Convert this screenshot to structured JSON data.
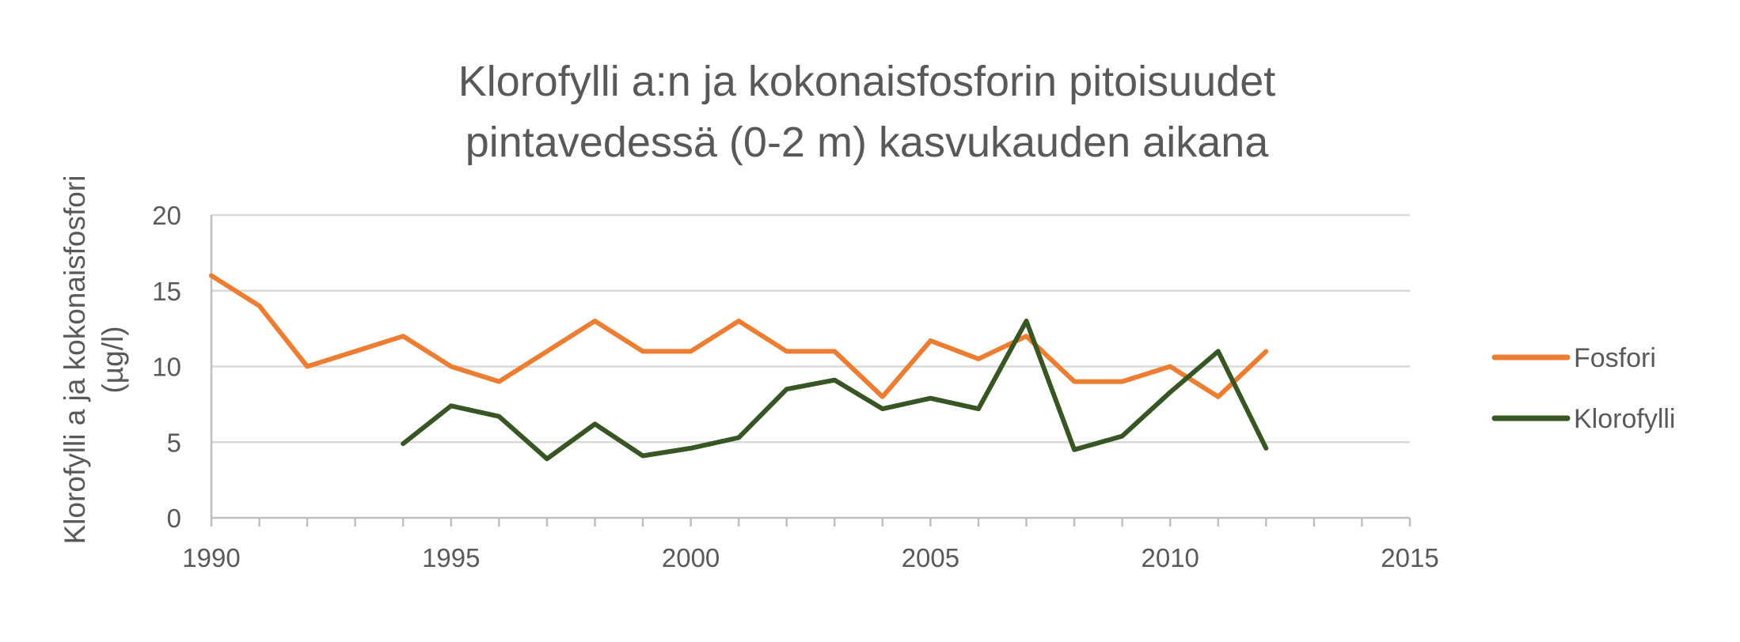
{
  "chart_data": {
    "type": "line",
    "title": "Klorofylli a:n ja kokonaisfosforin pitoisuudet pintavedessä (0-2 m) kasvukauden aikana",
    "title_lines": [
      "Klorofylli a:n ja kokonaisfosforin pitoisuudet",
      "pintavedessä (0-2 m) kasvukauden aikana"
    ],
    "xlabel": "",
    "ylabel": "Klorofylli a ja kokonaisfosfori (µg/l)",
    "ylabel_lines": [
      "Klorofylli a ja kokonaisfosfori",
      "(µg/l)"
    ],
    "xlim": [
      1990,
      2015
    ],
    "ylim": [
      0,
      20
    ],
    "x_major_ticks": [
      1990,
      1995,
      2000,
      2005,
      2010,
      2015
    ],
    "x_major_tick_labels": [
      "1990",
      "1995",
      "2000",
      "2005",
      "2010",
      "2015"
    ],
    "x_minor_step": 1,
    "y_ticks": [
      0,
      5,
      10,
      15,
      20
    ],
    "y_tick_labels": [
      "0",
      "5",
      "10",
      "15",
      "20"
    ],
    "grid": true,
    "legend_position": "right",
    "series": [
      {
        "name": "Fosfori",
        "color": "#ed7d31",
        "x": [
          1990,
          1991,
          1992,
          1993,
          1994,
          1995,
          1996,
          1997,
          1998,
          1999,
          2000,
          2001,
          2002,
          2003,
          2004,
          2005,
          2006,
          2007,
          2008,
          2009,
          2010,
          2011,
          2012
        ],
        "y": [
          16,
          14,
          10,
          11,
          12,
          10,
          9,
          11,
          13,
          11,
          11,
          13,
          11,
          11,
          8,
          11.7,
          10.5,
          12,
          9,
          9,
          10,
          8,
          11
        ]
      },
      {
        "name": "Klorofylli",
        "color": "#375623",
        "x": [
          1994,
          1995,
          1996,
          1997,
          1998,
          1999,
          2000,
          2001,
          2002,
          2003,
          2004,
          2005,
          2006,
          2007,
          2008,
          2009,
          2010,
          2011,
          2012
        ],
        "y": [
          4.9,
          7.4,
          6.7,
          3.9,
          6.2,
          4.1,
          4.6,
          5.3,
          8.5,
          9.1,
          7.2,
          7.9,
          7.2,
          13,
          4.5,
          5.4,
          8.3,
          11,
          4.6
        ]
      }
    ]
  }
}
